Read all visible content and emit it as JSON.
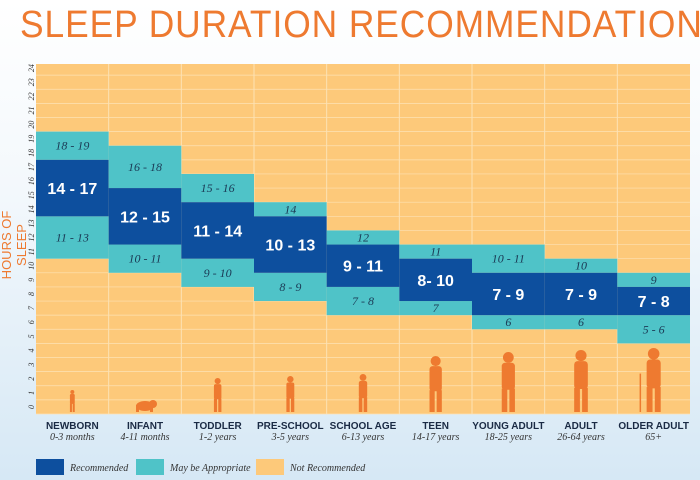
{
  "chart_data": {
    "type": "bar",
    "title": "SLEEP DURATION RECOMMENDATIONS",
    "ylabel": "HOURS OF SLEEP",
    "ylim": [
      0,
      24
    ],
    "yticks": [
      0,
      1,
      2,
      3,
      4,
      5,
      6,
      7,
      8,
      9,
      10,
      11,
      12,
      13,
      14,
      15,
      16,
      17,
      18,
      19,
      20,
      21,
      22,
      23,
      24
    ],
    "colors": {
      "recommended": "#0d4f9e",
      "may_be_appropriate": "#4fc3c8",
      "not_recommended": "#fdc97a",
      "accent": "#ee7a30"
    },
    "legend": [
      "Recommended",
      "May be Appropriate",
      "Not Recommended"
    ],
    "legend_placement": "bottom-left",
    "categories": [
      {
        "name": "NEWBORN",
        "age": "0-3 months",
        "icon": "newborn-silhouette",
        "upper": {
          "label": "18 - 19",
          "range": [
            18,
            19
          ]
        },
        "recommended": {
          "label": "14 - 17",
          "range": [
            14,
            17
          ]
        },
        "lower": {
          "label": "11 - 13",
          "range": [
            11,
            13
          ]
        }
      },
      {
        "name": "INFANT",
        "age": "4-11 months",
        "icon": "crawling-infant-silhouette",
        "upper": {
          "label": "16 - 18",
          "range": [
            16,
            18
          ]
        },
        "recommended": {
          "label": "12 - 15",
          "range": [
            12,
            15
          ]
        },
        "lower": {
          "label": "10 - 11",
          "range": [
            10,
            11
          ]
        }
      },
      {
        "name": "TODDLER",
        "age": "1-2 years",
        "icon": "toddler-silhouette",
        "upper": {
          "label": "15 - 16",
          "range": [
            15,
            16
          ]
        },
        "recommended": {
          "label": "11 - 14",
          "range": [
            11,
            14
          ]
        },
        "lower": {
          "label": "9 - 10",
          "range": [
            9,
            10
          ]
        }
      },
      {
        "name": "PRE-SCHOOL",
        "age": "3-5 years",
        "icon": "child-silhouette",
        "upper": {
          "label": "14",
          "range": [
            14,
            14
          ]
        },
        "recommended": {
          "label": "10 - 13",
          "range": [
            10,
            13
          ]
        },
        "lower": {
          "label": "8 - 9",
          "range": [
            8,
            9
          ]
        }
      },
      {
        "name": "SCHOOL AGE",
        "age": "6-13 years",
        "icon": "child-silhouette",
        "upper": {
          "label": "12",
          "range": [
            12,
            12
          ]
        },
        "recommended": {
          "label": "9 - 11",
          "range": [
            9,
            11
          ]
        },
        "lower": {
          "label": "7 - 8",
          "range": [
            7,
            8
          ]
        }
      },
      {
        "name": "TEEN",
        "age": "14-17 years",
        "icon": "teen-silhouette",
        "upper": {
          "label": "11",
          "range": [
            11,
            11
          ]
        },
        "recommended": {
          "label": "8- 10",
          "range": [
            8,
            10
          ]
        },
        "lower": {
          "label": "7",
          "range": [
            7,
            7
          ]
        }
      },
      {
        "name": "YOUNG ADULT",
        "age": "18-25 years",
        "icon": "adult-silhouette",
        "upper": {
          "label": "10 - 11",
          "range": [
            10,
            11
          ]
        },
        "recommended": {
          "label": "7 - 9",
          "range": [
            7,
            9
          ]
        },
        "lower": {
          "label": "6",
          "range": [
            6,
            6
          ]
        }
      },
      {
        "name": "ADULT",
        "age": "26-64 years",
        "icon": "adult-silhouette",
        "upper": {
          "label": "10",
          "range": [
            10,
            10
          ]
        },
        "recommended": {
          "label": "7 - 9",
          "range": [
            7,
            9
          ]
        },
        "lower": {
          "label": "6",
          "range": [
            6,
            6
          ]
        }
      },
      {
        "name": "OLDER ADULT",
        "age": "65+",
        "icon": "elderly-with-cane-silhouette",
        "upper": {
          "label": "9",
          "range": [
            9,
            9
          ]
        },
        "recommended": {
          "label": "7 - 8",
          "range": [
            7,
            8
          ]
        },
        "lower": {
          "label": "5 - 6",
          "range": [
            5,
            6
          ]
        }
      }
    ]
  }
}
